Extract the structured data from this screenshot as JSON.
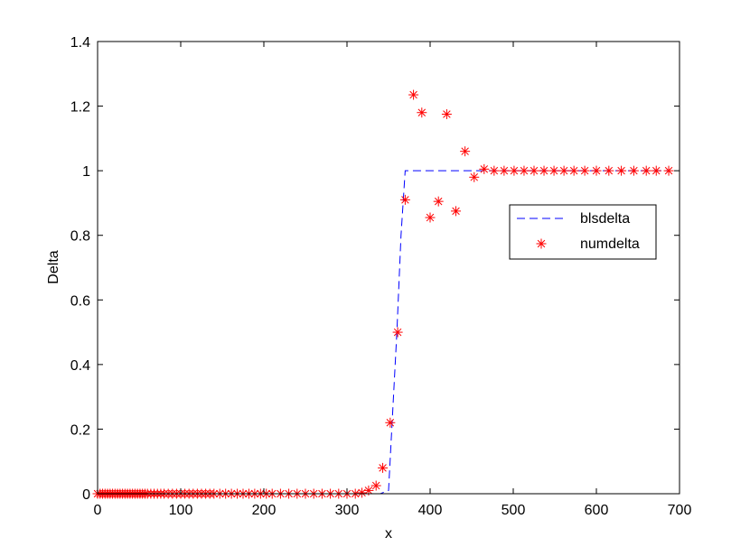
{
  "chart_data": {
    "type": "line",
    "xlabel": "x",
    "ylabel": "Delta",
    "xlim": [
      0,
      700
    ],
    "ylim": [
      0,
      1.4
    ],
    "xticks": [
      0,
      100,
      200,
      300,
      400,
      500,
      600,
      700
    ],
    "yticks": [
      0,
      0.2,
      0.4,
      0.6,
      0.8,
      1,
      1.2,
      1.4
    ],
    "xtick_labels": [
      "0",
      "100",
      "200",
      "300",
      "400",
      "500",
      "600",
      "700"
    ],
    "ytick_labels": [
      "0",
      "0.2",
      "0.4",
      "0.6",
      "0.8",
      "1",
      "1.2",
      "1.4"
    ],
    "grid": false,
    "legend_position": "right",
    "series": [
      {
        "name": "blsdelta",
        "style": "dashed-line",
        "color": "#0000ff",
        "x": [
          0,
          100,
          200,
          300,
          320,
          330,
          340,
          350,
          360,
          365,
          370,
          380,
          400,
          450,
          500,
          600,
          687
        ],
        "y": [
          0,
          0,
          0,
          0,
          0,
          0,
          0,
          0.01,
          0.5,
          0.8,
          1,
          1,
          1,
          1,
          1,
          1,
          1
        ]
      },
      {
        "name": "numdelta",
        "style": "star-markers",
        "color": "#ff0000",
        "x": [
          0,
          3,
          6,
          9,
          12,
          15,
          18,
          21,
          24,
          27,
          30,
          33,
          36,
          39,
          42,
          45,
          48,
          51,
          54,
          57,
          60,
          64,
          68,
          72,
          76,
          80,
          85,
          90,
          95,
          100,
          105,
          110,
          115,
          120,
          125,
          130,
          135,
          140,
          147,
          154,
          161,
          168,
          175,
          182,
          189,
          196,
          203,
          210,
          220,
          230,
          240,
          250,
          260,
          270,
          280,
          290,
          300,
          310,
          318,
          326,
          335,
          343,
          352,
          361,
          370,
          380,
          390,
          400,
          410,
          420,
          431,
          442,
          453,
          465,
          477,
          489,
          501,
          513,
          525,
          537,
          549,
          561,
          573,
          586,
          600,
          615,
          630,
          645,
          660,
          672,
          687
        ],
        "y": [
          0,
          0,
          0,
          0,
          0,
          0,
          0,
          0,
          0,
          0,
          0,
          0,
          0,
          0,
          0,
          0,
          0,
          0,
          0,
          0,
          0,
          0,
          0,
          0,
          0,
          0,
          0,
          0,
          0,
          0,
          0,
          0,
          0,
          0,
          0,
          0,
          0,
          0,
          0,
          0,
          0,
          0,
          0,
          0,
          0,
          0,
          0,
          0,
          0,
          0,
          0,
          0,
          0,
          0,
          0,
          0,
          0,
          0,
          0.003,
          0.01,
          0.025,
          0.08,
          0.22,
          0.5,
          0.91,
          1.235,
          1.18,
          0.855,
          0.905,
          1.175,
          0.875,
          1.06,
          0.98,
          1.005,
          1,
          1,
          1,
          1,
          1,
          1,
          1,
          1,
          1,
          1,
          1,
          1,
          1,
          1,
          1,
          1,
          1
        ]
      }
    ]
  }
}
